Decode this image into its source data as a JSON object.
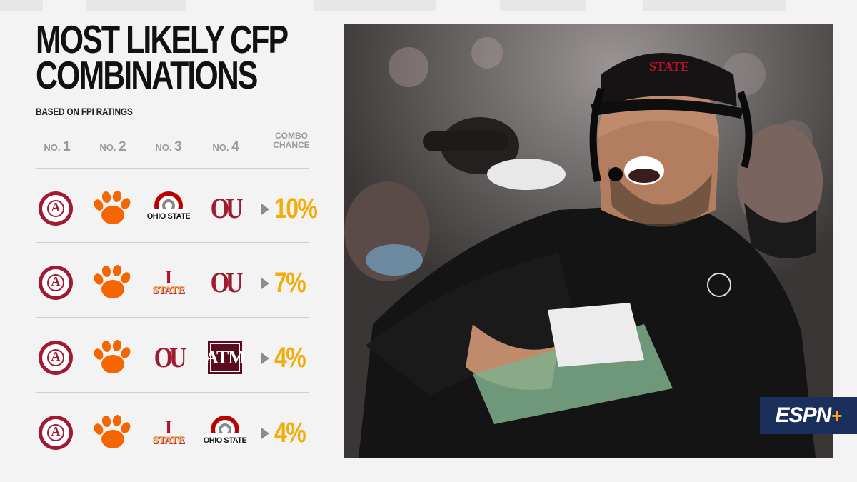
{
  "title_line1": "MOST LIKELY CFP",
  "title_line2": "COMBINATIONS",
  "subtitle": "BASED ON FPI RATINGS",
  "columns": {
    "no1": {
      "prefix": "NO.",
      "num": "1"
    },
    "no2": {
      "prefix": "NO.",
      "num": "2"
    },
    "no3": {
      "prefix": "NO.",
      "num": "3"
    },
    "no4": {
      "prefix": "NO.",
      "num": "4"
    },
    "combo_line1": "COMBO",
    "combo_line2": "CHANCE"
  },
  "rows": [
    {
      "teams": [
        "alabama",
        "clemson",
        "ohio-state",
        "oklahoma"
      ],
      "chance": "10%"
    },
    {
      "teams": [
        "alabama",
        "clemson",
        "iowa-state",
        "oklahoma"
      ],
      "chance": "7%"
    },
    {
      "teams": [
        "alabama",
        "clemson",
        "oklahoma",
        "texas-am"
      ],
      "chance": "4%"
    },
    {
      "teams": [
        "alabama",
        "clemson",
        "iowa-state",
        "ohio-state"
      ],
      "chance": "4%"
    }
  ],
  "logo_text": {
    "alabama_letter": "A",
    "alabama_ring": "ALABAMA CRIMSON TIDE",
    "oklahoma": "OU",
    "iowa_state_i": "I",
    "iowa_state_word": "STATE",
    "texas_am": "ATM",
    "ohio_state": "OHIO STATE"
  },
  "photo": {
    "icon": "coach-photo",
    "cap_text": "STATE"
  },
  "brand": {
    "espn": "ESPN",
    "plus": "+"
  },
  "colors": {
    "accent": "#f2ac0c",
    "crimson": "#9e1b32",
    "clemson_orange": "#f56600",
    "texas_am_maroon": "#5b0b1b",
    "ohio_state_scarlet": "#bb0000",
    "iowa_state_gold": "#f1be48",
    "espn_navy": "#1a2f5c"
  }
}
